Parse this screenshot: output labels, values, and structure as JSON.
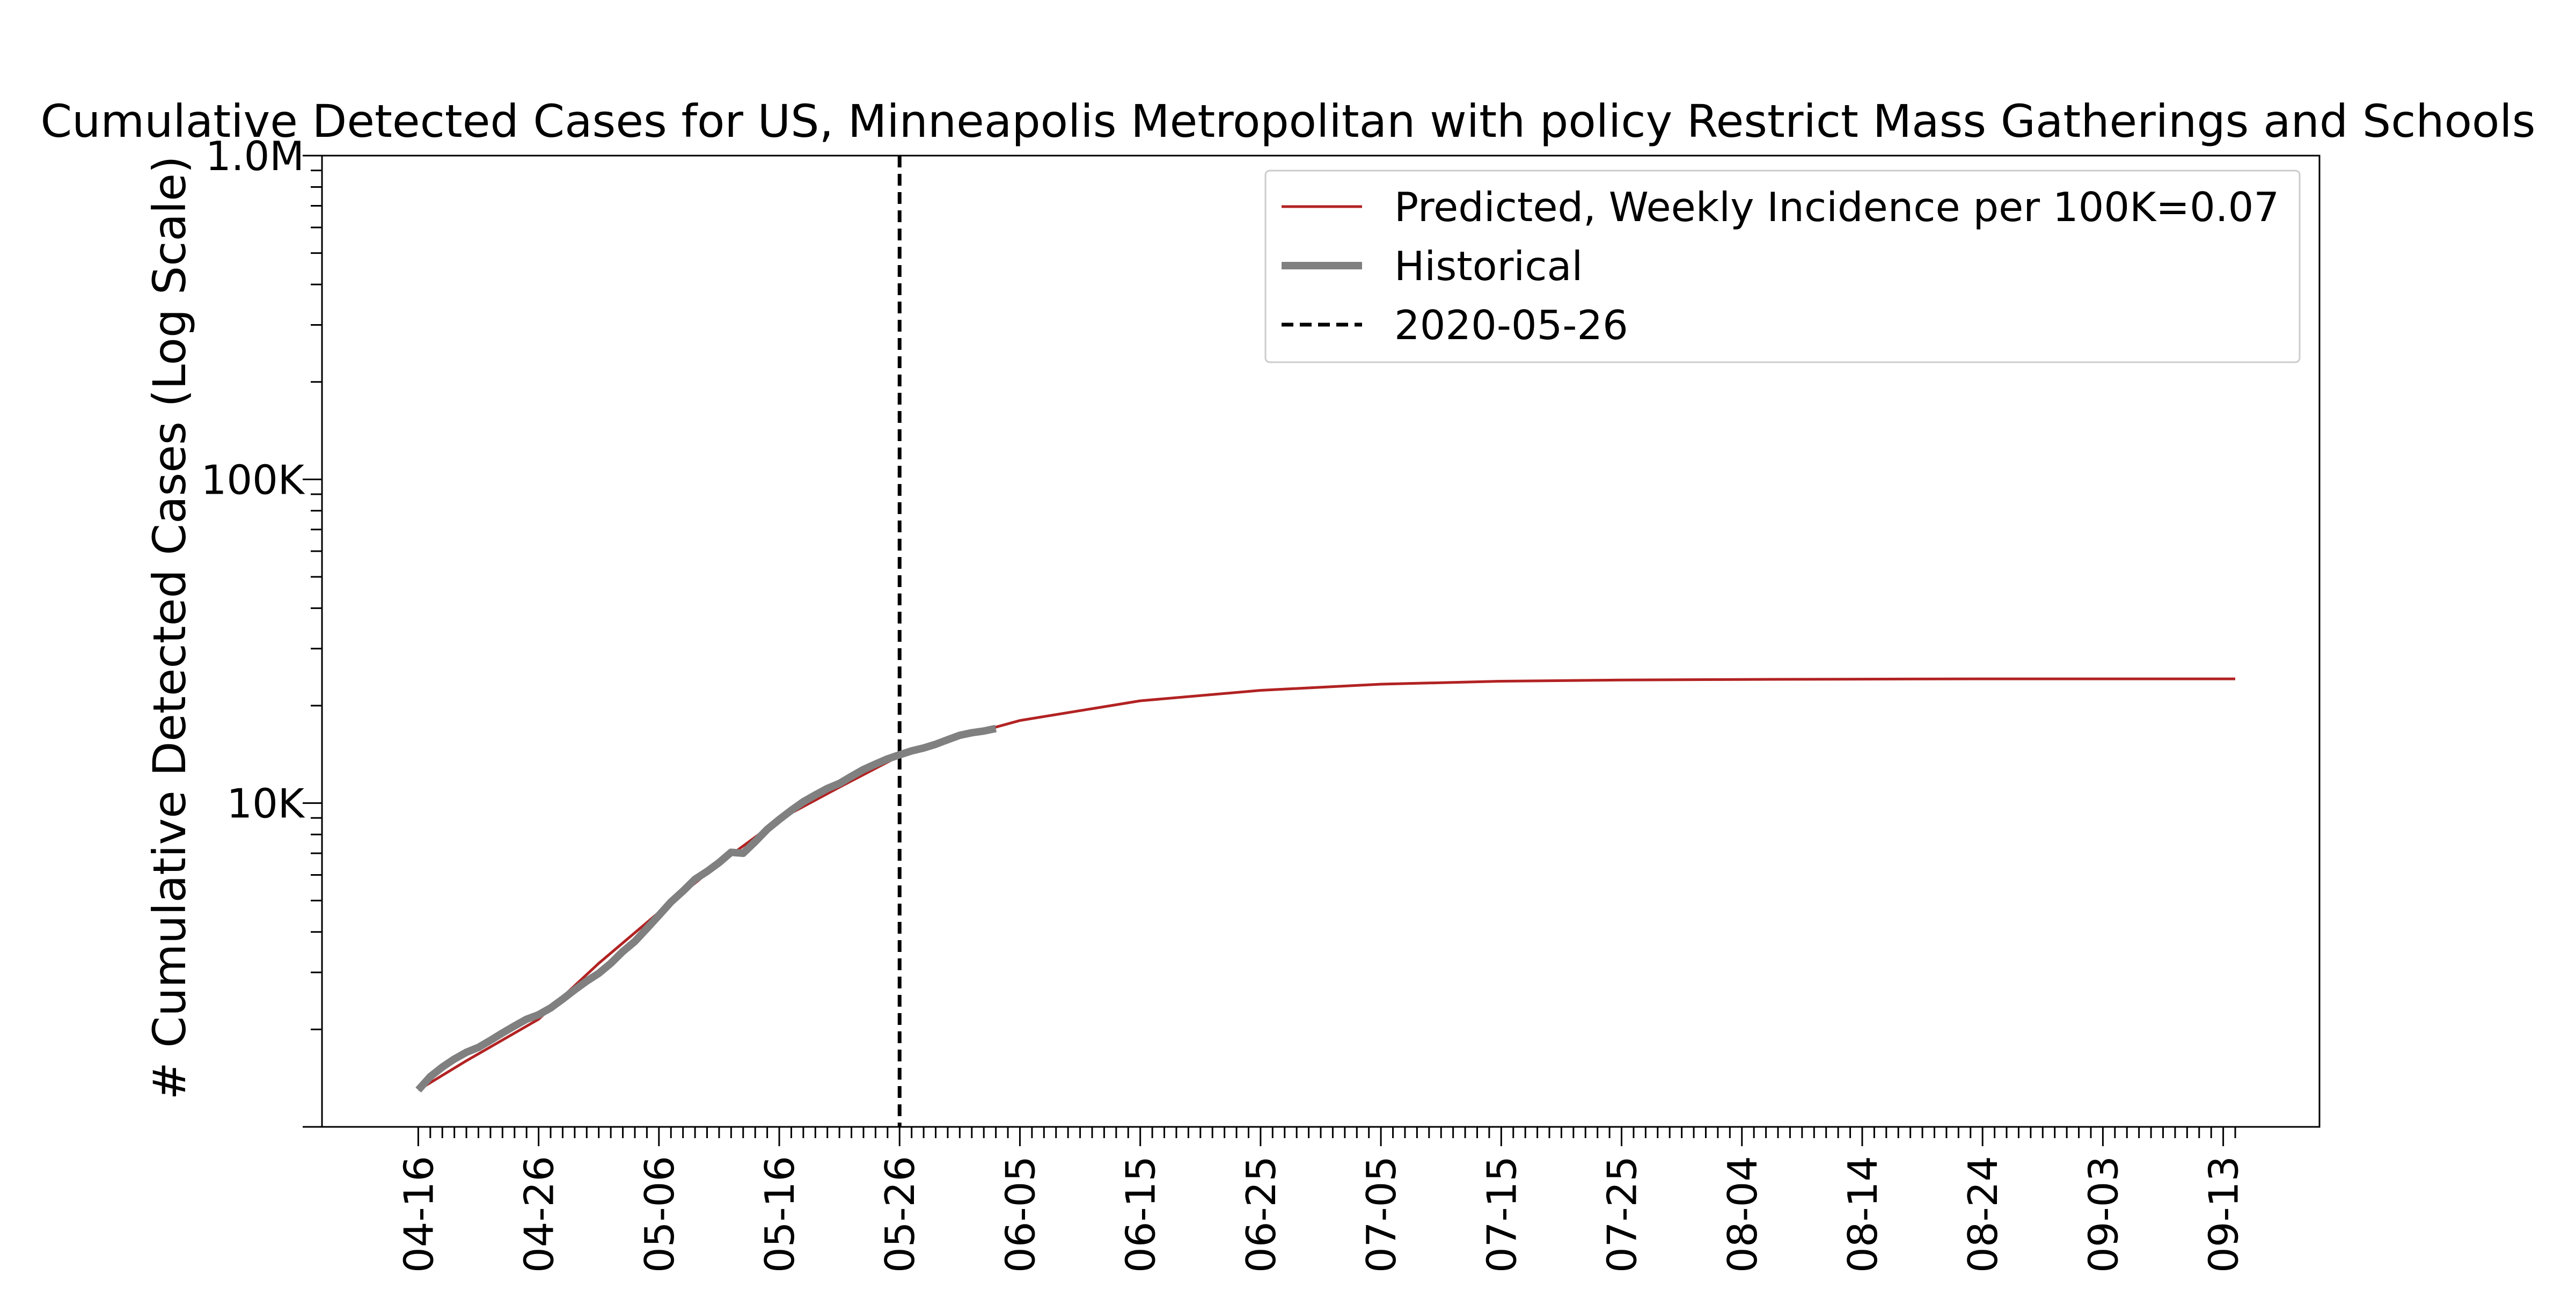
{
  "chart_data": {
    "type": "line",
    "title": "Cumulative Detected Cases for US, Minneapolis Metropolitan with policy Restrict Mass Gatherings and Schools",
    "xlabel": "",
    "ylabel": "# Cumulative Detected Cases (Log Scale)",
    "yscale": "log",
    "ylim": [
      1000,
      1000000
    ],
    "xlim": [
      "2020-04-08",
      "2020-09-21"
    ],
    "ytick_values": [
      1000,
      10000,
      100000,
      1000000
    ],
    "ytick_labels": [
      "",
      "10K",
      "100K",
      "1.0M"
    ],
    "xtick_values": [
      "2020-04-16",
      "2020-04-26",
      "2020-05-06",
      "2020-05-16",
      "2020-05-26",
      "2020-06-05",
      "2020-06-15",
      "2020-06-25",
      "2020-07-05",
      "2020-07-15",
      "2020-07-25",
      "2020-08-04",
      "2020-08-14",
      "2020-08-24",
      "2020-09-03",
      "2020-09-13"
    ],
    "xtick_labels": [
      "04-16",
      "04-26",
      "05-06",
      "05-16",
      "05-26",
      "06-05",
      "06-15",
      "06-25",
      "07-05",
      "07-15",
      "07-25",
      "08-04",
      "08-14",
      "08-24",
      "09-03",
      "09-13"
    ],
    "minor_ticks": "daily",
    "grid": false,
    "legend": {
      "placement": "top-right",
      "entries": [
        {
          "label": "Predicted, Weekly Incidence per 100K=0.07",
          "color": "#b22222",
          "style": "solid-thin"
        },
        {
          "label": "Historical",
          "color": "#808080",
          "style": "solid-thick"
        },
        {
          "label": "2020-05-26",
          "color": "#000000",
          "style": "dashed"
        }
      ]
    },
    "vline": {
      "x": "2020-05-26",
      "label": "2020-05-26"
    },
    "series": [
      {
        "name": "Predicted, Weekly Incidence per 100K=0.07",
        "color": "#b22222",
        "x": [
          "2020-04-16",
          "2020-04-20",
          "2020-04-26",
          "2020-05-01",
          "2020-05-06",
          "2020-05-11",
          "2020-05-16",
          "2020-05-21",
          "2020-05-26",
          "2020-05-31",
          "2020-06-05",
          "2020-06-15",
          "2020-06-25",
          "2020-07-05",
          "2020-07-15",
          "2020-07-25",
          "2020-08-04",
          "2020-08-14",
          "2020-08-24",
          "2020-09-03",
          "2020-09-14"
        ],
        "values": [
          1300,
          1600,
          2150,
          3200,
          4600,
          6500,
          8900,
          11200,
          14000,
          16000,
          18000,
          20700,
          22300,
          23300,
          23800,
          24000,
          24100,
          24150,
          24200,
          24200,
          24200
        ]
      },
      {
        "name": "Historical",
        "color": "#808080",
        "x": [
          "2020-04-16",
          "2020-04-17",
          "2020-04-18",
          "2020-04-19",
          "2020-04-20",
          "2020-04-21",
          "2020-04-22",
          "2020-04-23",
          "2020-04-24",
          "2020-04-25",
          "2020-04-26",
          "2020-04-27",
          "2020-04-28",
          "2020-04-29",
          "2020-04-30",
          "2020-05-01",
          "2020-05-02",
          "2020-05-03",
          "2020-05-04",
          "2020-05-05",
          "2020-05-06",
          "2020-05-07",
          "2020-05-08",
          "2020-05-09",
          "2020-05-10",
          "2020-05-11",
          "2020-05-12",
          "2020-05-13",
          "2020-05-14",
          "2020-05-15",
          "2020-05-16",
          "2020-05-17",
          "2020-05-18",
          "2020-05-19",
          "2020-05-20",
          "2020-05-21",
          "2020-05-22",
          "2020-05-23",
          "2020-05-24",
          "2020-05-25",
          "2020-05-26",
          "2020-05-27",
          "2020-05-28",
          "2020-05-29",
          "2020-05-30",
          "2020-05-31",
          "2020-06-01",
          "2020-06-02",
          "2020-06-03"
        ],
        "values": [
          1300,
          1430,
          1530,
          1620,
          1700,
          1760,
          1850,
          1950,
          2050,
          2150,
          2220,
          2330,
          2480,
          2650,
          2820,
          2980,
          3200,
          3480,
          3740,
          4100,
          4500,
          4950,
          5350,
          5820,
          6150,
          6550,
          7050,
          7000,
          7600,
          8300,
          8900,
          9500,
          10100,
          10600,
          11100,
          11500,
          12100,
          12700,
          13200,
          13700,
          14100,
          14500,
          14800,
          15200,
          15700,
          16200,
          16500,
          16700,
          17000
        ]
      }
    ]
  }
}
